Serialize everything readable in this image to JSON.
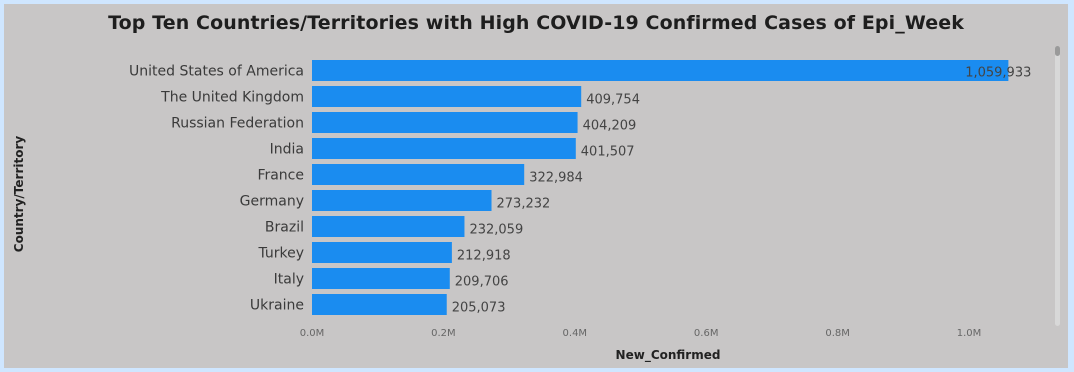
{
  "chart_data": {
    "type": "bar",
    "orientation": "horizontal",
    "title": "Top Ten Countries/Territories with High COVID-19 Confirmed Cases of Epi_Week",
    "xlabel": "New_Confirmed",
    "ylabel": "Country/Territory",
    "categories": [
      "United States of America",
      "The United Kingdom",
      "Russian Federation",
      "India",
      "France",
      "Germany",
      "Brazil",
      "Turkey",
      "Italy",
      "Ukraine"
    ],
    "values": [
      1059933,
      409754,
      404209,
      401507,
      322984,
      273232,
      232059,
      212918,
      209706,
      205073
    ],
    "value_labels": [
      "1,059,933",
      "409,754",
      "404,209",
      "401,507",
      "322,984",
      "273,232",
      "232,059",
      "212,918",
      "209,706",
      "205,073"
    ],
    "xlim": [
      0,
      1000000
    ],
    "xticks": [
      0,
      200000,
      400000,
      600000,
      800000,
      1000000
    ],
    "xtick_labels": [
      "0.0M",
      "0.2M",
      "0.4M",
      "0.6M",
      "0.8M",
      "1.0M"
    ],
    "grid": false,
    "legend": "none",
    "colors": {
      "bar": "#1a8cf0",
      "background": "#c8c6c6",
      "frame": "#cfe6ff"
    }
  }
}
